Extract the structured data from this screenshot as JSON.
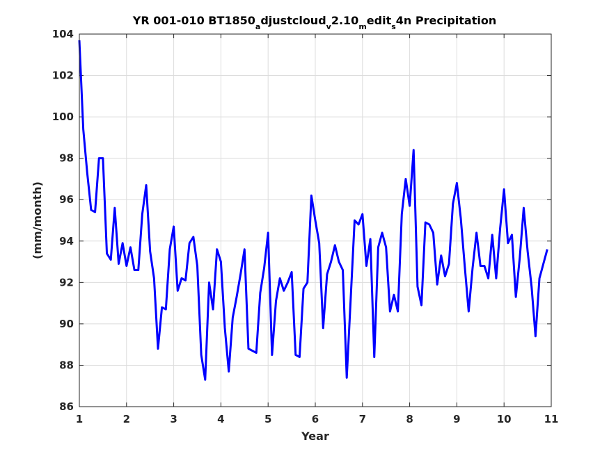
{
  "chart_data": {
    "type": "line",
    "title": "YR 001-010 BT1850_adjustcloud_v2.10_medit_s4n Precipitation",
    "title_parts": [
      {
        "text": "YR 001-010 BT1850",
        "sub": false
      },
      {
        "text": "a",
        "sub": true
      },
      {
        "text": "djustcloud",
        "sub": false
      },
      {
        "text": "v",
        "sub": true
      },
      {
        "text": "2.10",
        "sub": false
      },
      {
        "text": "m",
        "sub": true
      },
      {
        "text": "edit",
        "sub": false
      },
      {
        "text": "s",
        "sub": true
      },
      {
        "text": "4n Precipitation",
        "sub": false
      }
    ],
    "xlabel": "Year",
    "ylabel": "(mm/month)",
    "xlim": [
      1,
      11
    ],
    "ylim": [
      86,
      104
    ],
    "x_ticks": [
      1,
      2,
      3,
      4,
      5,
      6,
      7,
      8,
      9,
      10,
      11
    ],
    "x_tick_labels": [
      "1",
      "2",
      "3",
      "4",
      "5",
      "6",
      "7",
      "8",
      "9",
      "10",
      "11"
    ],
    "y_ticks": [
      86,
      88,
      90,
      92,
      94,
      96,
      98,
      100,
      102,
      104
    ],
    "y_tick_labels": [
      "86",
      "88",
      "90",
      "92",
      "94",
      "96",
      "98",
      "100",
      "102",
      "104"
    ],
    "grid": true,
    "line_color": "#0000ff",
    "series": [
      {
        "x_start": 1,
        "x_step_months": 1,
        "values": [
          103.7,
          99.4,
          97.3,
          95.5,
          95.4,
          98.0,
          98.0,
          93.4,
          93.1,
          95.6,
          92.9,
          93.9,
          92.8,
          93.7,
          92.6,
          92.6,
          95.3,
          96.7,
          93.5,
          92.2,
          88.8,
          90.8,
          90.7,
          93.6,
          94.7,
          91.6,
          92.2,
          92.1,
          93.9,
          94.2,
          92.8,
          88.5,
          87.3,
          92.0,
          90.7,
          93.6,
          93.0,
          89.8,
          87.7,
          90.3,
          91.3,
          92.4,
          93.6,
          88.8,
          88.7,
          88.6,
          91.5,
          92.7,
          94.4,
          88.5,
          91.1,
          92.2,
          91.6,
          92.0,
          92.5,
          88.5,
          88.4,
          91.7,
          92.0,
          96.2,
          95.0,
          93.9,
          89.8,
          92.4,
          93.0,
          93.8,
          93.0,
          92.6,
          87.4,
          91.2,
          95.0,
          94.8,
          95.3,
          92.8,
          94.1,
          88.4,
          93.7,
          94.4,
          93.7,
          90.6,
          91.4,
          90.6,
          95.3,
          97.0,
          95.7,
          98.4,
          91.8,
          90.9,
          94.9,
          94.8,
          94.4,
          91.9,
          93.3,
          92.3,
          92.9,
          95.8,
          96.8,
          95.1,
          92.8,
          90.6,
          92.7,
          94.4,
          92.8,
          92.8,
          92.2,
          94.3,
          92.2,
          94.6,
          96.5,
          93.9,
          94.3,
          91.3,
          93.2,
          95.6,
          93.5,
          91.8,
          89.4,
          92.2,
          92.9,
          93.6
        ]
      }
    ]
  }
}
